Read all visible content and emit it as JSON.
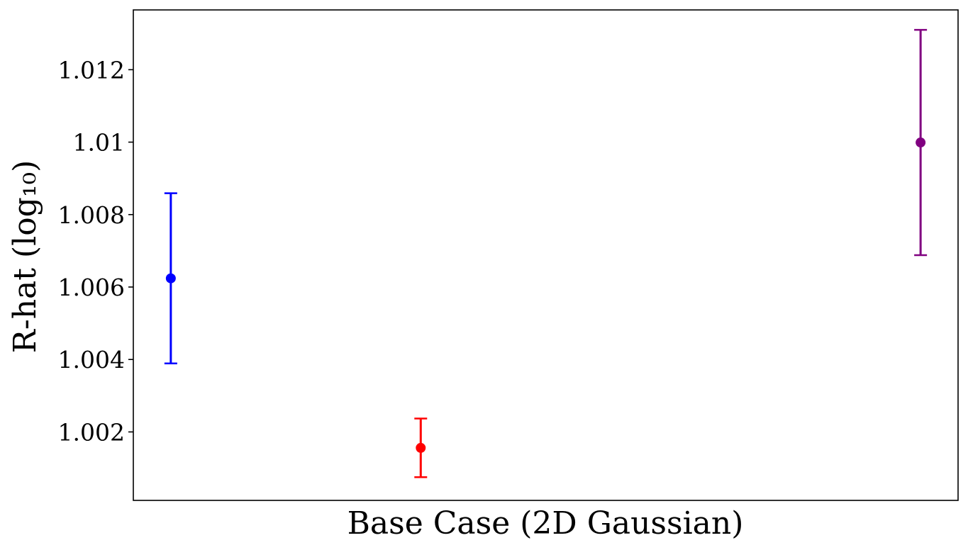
{
  "chart_data": {
    "type": "scatter",
    "title": "",
    "xlabel": "Base Case (2D Gaussian)",
    "ylabel": "R-hat (log₁₀)",
    "ylim": [
      1.00011,
      1.01365
    ],
    "yticks": [
      "1.002",
      "1.004",
      "1.006",
      "1.008",
      "1.01",
      "1.012"
    ],
    "grid": false,
    "legend": "none",
    "series": [
      {
        "x": 0,
        "value": 1.00624,
        "err_low": 1.00389,
        "err_high": 1.00859,
        "color": "#0000ff"
      },
      {
        "x": 1,
        "value": 1.00156,
        "err_low": 1.00075,
        "err_high": 1.00237,
        "color": "#ff0000"
      },
      {
        "x": 3,
        "value": 1.00999,
        "err_low": 1.00688,
        "err_high": 1.0131,
        "color": "#800080"
      }
    ],
    "xlim": [
      -0.15,
      3.15
    ]
  }
}
